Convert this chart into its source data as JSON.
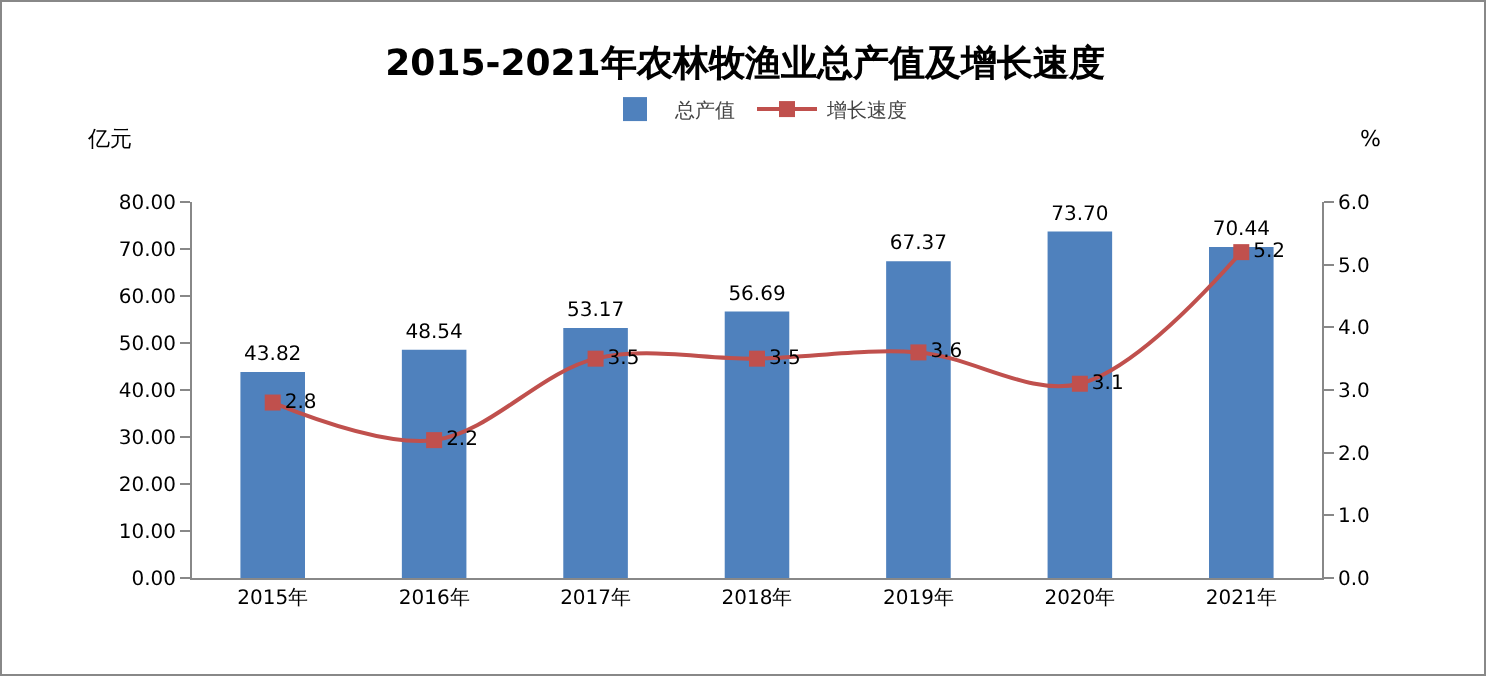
{
  "chart_data": {
    "type": "bar",
    "title": "2015-2021年农林牧渔业总产值及增长速度",
    "ylabel": "亿元",
    "y2label": "%",
    "categories": [
      "2015年",
      "2016年",
      "2017年",
      "2018年",
      "2019年",
      "2020年",
      "2021年"
    ],
    "series": [
      {
        "name": "总产值",
        "color": "#4f81bd",
        "values": [
          43.82,
          48.54,
          53.17,
          56.69,
          67.37,
          73.7,
          70.44
        ],
        "value_labels": [
          "43.82",
          "48.54",
          "53.17",
          "56.69",
          "67.37",
          "73.70",
          "70.44"
        ]
      },
      {
        "name": "增长速度",
        "type": "line",
        "axis": "y2",
        "color": "#c0504d",
        "marker": "square",
        "values": [
          2.8,
          2.2,
          3.5,
          3.5,
          3.6,
          3.1,
          5.2
        ],
        "value_labels": [
          "2.8",
          "2.2",
          "3.5",
          "3.5",
          "3.6",
          "3.1",
          "5.2"
        ]
      }
    ],
    "ylim": [
      0,
      80
    ],
    "yticks": [
      {
        "value": 0,
        "label": "0.00"
      },
      {
        "value": 10,
        "label": "10.00"
      },
      {
        "value": 20,
        "label": "20.00"
      },
      {
        "value": 30,
        "label": "30.00"
      },
      {
        "value": 40,
        "label": "40.00"
      },
      {
        "value": 50,
        "label": "50.00"
      },
      {
        "value": 60,
        "label": "60.00"
      },
      {
        "value": 70,
        "label": "70.00"
      },
      {
        "value": 80,
        "label": "80.00"
      }
    ],
    "y2lim": [
      0,
      6
    ],
    "y2ticks": [
      {
        "value": 0,
        "label": "0.0"
      },
      {
        "value": 1,
        "label": "1.0"
      },
      {
        "value": 2,
        "label": "2.0"
      },
      {
        "value": 3,
        "label": "3.0"
      },
      {
        "value": 4,
        "label": "4.0"
      },
      {
        "value": 5,
        "label": "5.0"
      },
      {
        "value": 6,
        "label": "6.0"
      }
    ],
    "legend": "top"
  }
}
